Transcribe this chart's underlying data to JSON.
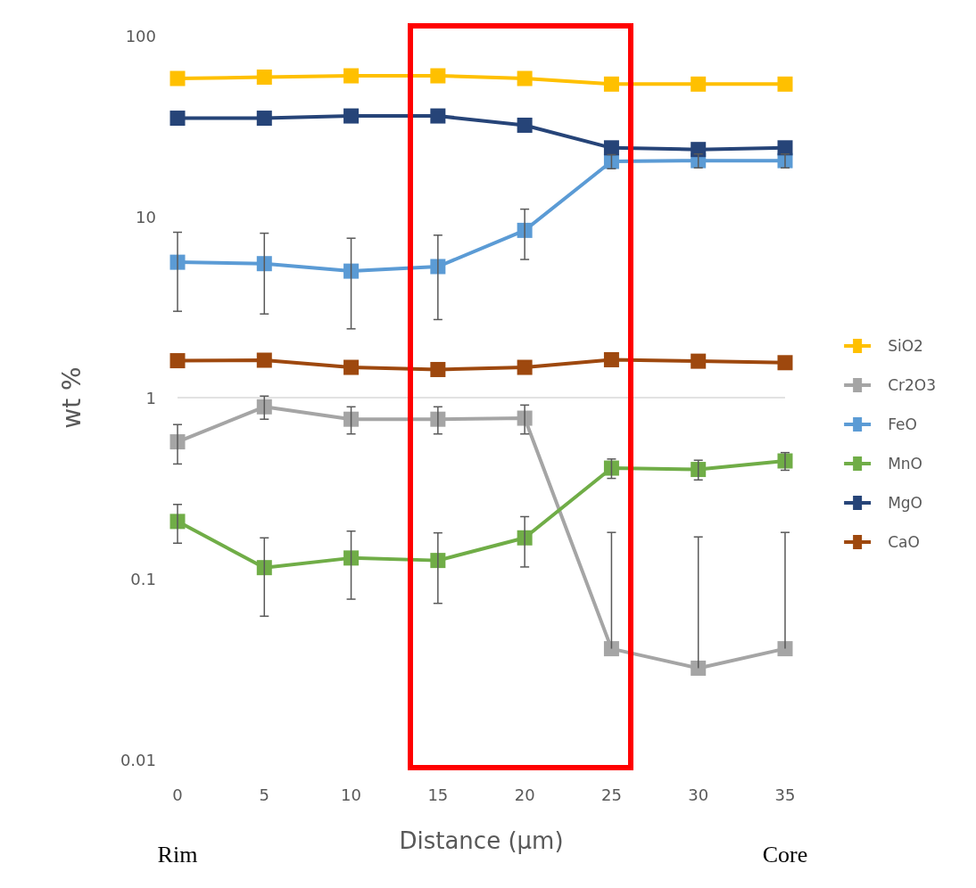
{
  "chart_data": {
    "type": "line",
    "xlabel": "Distance (µm)",
    "ylabel": "wt %",
    "categories": [
      "0",
      "5",
      "10",
      "15",
      "20",
      "25",
      "30",
      "35"
    ],
    "series": [
      {
        "name": "SiO2",
        "color": "#ffc000",
        "values": [
          58,
          59,
          60,
          60,
          58,
          54,
          54,
          54
        ]
      },
      {
        "name": "Cr2O3",
        "color": "#a5a5a5",
        "values": [
          0.57,
          0.89,
          0.76,
          0.76,
          0.77,
          0.041,
          0.032,
          0.041
        ],
        "errors": [
          0.14,
          0.13,
          0.13,
          0.13,
          0.14,
          [
            0.041,
            0.18
          ],
          [
            0.032,
            0.17
          ],
          [
            0.041,
            0.18
          ]
        ]
      },
      {
        "name": "FeO",
        "color": "#5b9bd5",
        "values": [
          5.6,
          5.5,
          5.0,
          5.3,
          8.4,
          20.2,
          20.4,
          20.4
        ],
        "errors": [
          2.6,
          2.6,
          2.6,
          2.6,
          2.6,
          1.8,
          1.8,
          1.8
        ]
      },
      {
        "name": "MnO",
        "color": "#70ad47",
        "values": [
          0.207,
          0.115,
          0.13,
          0.126,
          0.168,
          0.408,
          0.401,
          0.447
        ],
        "errors": [
          0.05,
          0.053,
          0.053,
          0.053,
          0.052,
          0.05,
          0.05,
          0.05
        ]
      },
      {
        "name": "MgO",
        "color": "#264478",
        "values": [
          35,
          35,
          36,
          36,
          32,
          24,
          23.5,
          24
        ]
      },
      {
        "name": "CaO",
        "color": "#9e480e",
        "values": [
          1.6,
          1.61,
          1.47,
          1.43,
          1.47,
          1.62,
          1.59,
          1.56
        ]
      }
    ],
    "ylim": [
      0.01,
      100
    ],
    "yticks": [
      0.01,
      0.1,
      1,
      10,
      100
    ],
    "log": true,
    "legend": "right",
    "marker": "square",
    "ref_lines": [
      {
        "axis": "y",
        "value": 1,
        "color": "#d9d9d9"
      }
    ],
    "annotations": [
      "Rim",
      "Core"
    ]
  }
}
